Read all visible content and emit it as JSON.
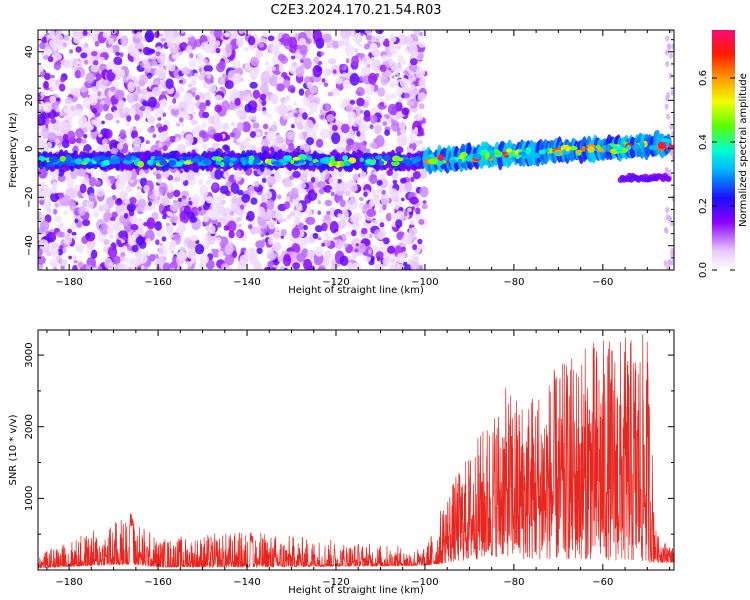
{
  "title": "C2E3.2024.170.21.54.R03",
  "chart_data": [
    {
      "type": "heatmap",
      "xlabel": "Height of straight line (km)",
      "ylabel": "Frequency (Hz)",
      "xlim": [
        -187,
        -44
      ],
      "ylim": [
        -50,
        49
      ],
      "xticks": [
        -180,
        -160,
        -140,
        -120,
        -100,
        -80,
        -60
      ],
      "yticks": [
        -40,
        -20,
        0,
        20,
        40
      ],
      "colorbar": {
        "label": "Normalized spectral amplitude",
        "range": [
          0.0,
          0.75
        ],
        "ticks": [
          0.0,
          0.2,
          0.4,
          0.6
        ]
      },
      "band": {
        "description_points": [
          {
            "x": -187,
            "freq": -5
          },
          {
            "x": -100,
            "freq": -5
          },
          {
            "x": -80,
            "freq": -2
          },
          {
            "x": -60,
            "freq": 0
          },
          {
            "x": -46,
            "freq": 2
          }
        ]
      },
      "noise_region_x": [
        -187,
        -100
      ]
    },
    {
      "type": "line",
      "xlabel": "Height of straight line (km)",
      "ylabel": "SNR (10 * v/v)",
      "xlim": [
        -187,
        -44
      ],
      "ylim": [
        0,
        3350
      ],
      "xticks": [
        -180,
        -160,
        -140,
        -120,
        -100,
        -80,
        -60
      ],
      "yticks": [
        1000,
        2000,
        3000
      ],
      "series": [
        {
          "color": "#e8251f",
          "envelope": [
            {
              "x": -187,
              "low": 30,
              "high": 220
            },
            {
              "x": -166,
              "low": 80,
              "high": 800
            },
            {
              "x": -160,
              "low": 40,
              "high": 450
            },
            {
              "x": -140,
              "low": 40,
              "high": 550
            },
            {
              "x": -100,
              "low": 60,
              "high": 300
            },
            {
              "x": -95,
              "low": 100,
              "high": 1100
            },
            {
              "x": -82,
              "low": 200,
              "high": 2550
            },
            {
              "x": -78,
              "low": 150,
              "high": 2450
            },
            {
              "x": -62,
              "low": 150,
              "high": 3250
            },
            {
              "x": -50,
              "low": 100,
              "high": 3300
            },
            {
              "x": -48,
              "low": 100,
              "high": 500
            },
            {
              "x": -44,
              "low": 100,
              "high": 300
            }
          ]
        }
      ]
    }
  ]
}
